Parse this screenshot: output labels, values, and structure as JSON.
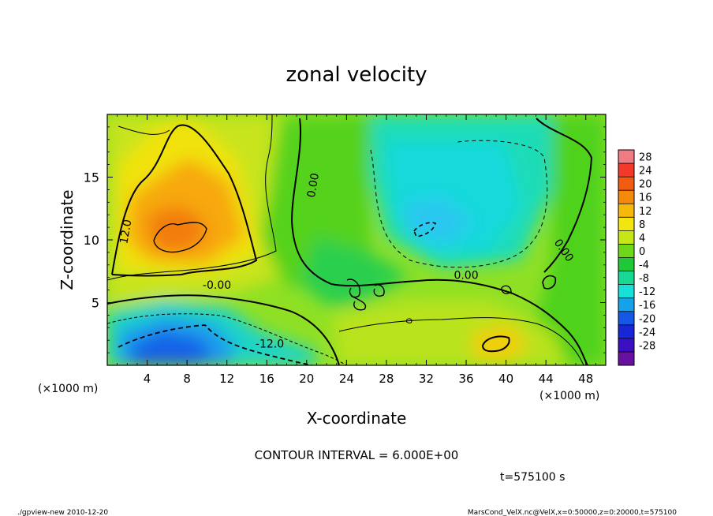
{
  "chart_data": {
    "type": "heatmap",
    "title": "zonal velocity",
    "xlabel": "X-coordinate",
    "ylabel": "Z-coordinate",
    "x_unit": "(×1000 m)",
    "z_unit": "(×1000 m)",
    "xlim": [
      0,
      50
    ],
    "ylim": [
      0,
      20
    ],
    "x_ticks": [
      4,
      8,
      12,
      16,
      20,
      24,
      28,
      32,
      36,
      40,
      44,
      48
    ],
    "y_ticks": [
      5,
      10,
      15
    ],
    "colorbar": {
      "labels": [
        28,
        24,
        20,
        16,
        12,
        8,
        4,
        0,
        -4,
        -8,
        -12,
        -16,
        -20,
        -24,
        -28
      ],
      "colors": [
        "#f07b82",
        "#f33a2a",
        "#f25c10",
        "#f58a0a",
        "#f7b80c",
        "#f2e60e",
        "#c6e615",
        "#6fd71a",
        "#1fc836",
        "#19d895",
        "#17e0d8",
        "#14a2ea",
        "#1558e6",
        "#1726d6",
        "#3a10c0",
        "#6a10a0"
      ]
    },
    "contour_labels": [
      {
        "text": "12.0",
        "x": 2.2,
        "y": 10.6
      },
      {
        "text": "0.00",
        "x": 21.0,
        "y": 14.3
      },
      {
        "text": "0.00",
        "x": 45.5,
        "y": 9.0
      },
      {
        "text": "-0.00",
        "x": 11.0,
        "y": 6.1
      },
      {
        "text": "0.00",
        "x": 36.0,
        "y": 6.9
      },
      {
        "text": "-12.0",
        "x": 16.3,
        "y": 1.4
      }
    ],
    "contour_interval_text": "CONTOUR INTERVAL = 6.000E+00",
    "time_text": "t=575100 s"
  },
  "footer": {
    "left": "./gpview-new  2010-12-20",
    "right": "MarsCond_VelX.nc@VelX,x=0:50000,z=0:20000,t=575100"
  }
}
